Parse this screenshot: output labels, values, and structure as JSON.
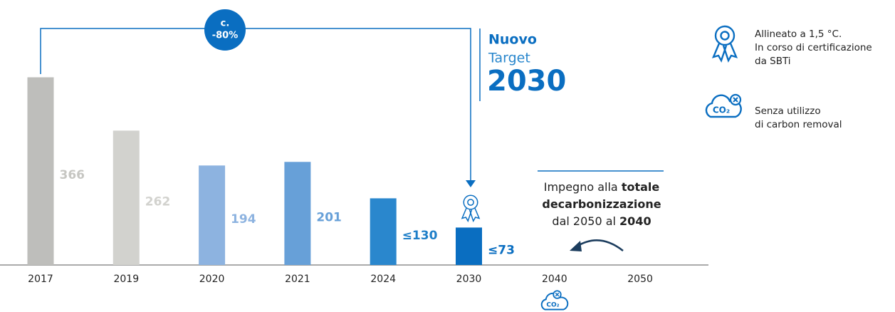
{
  "chart_data": {
    "type": "bar",
    "categories": [
      "2017",
      "2019",
      "2020",
      "2021",
      "2024",
      "2030",
      "2040",
      "2050"
    ],
    "values": [
      366,
      262,
      194,
      201,
      130,
      73,
      null,
      null
    ],
    "value_labels": [
      "366",
      "262",
      "194",
      "201",
      "≤130",
      "≤73",
      null,
      null
    ],
    "colors": [
      "#bebebb",
      "#d2d2ce",
      "#8db3e0",
      "#67a0d8",
      "#2a87cd",
      "#0a6ec1",
      null,
      null
    ],
    "label_colors": [
      "#c6c6c2",
      "#d2d2ce",
      "#8db3e0",
      "#67a0d8",
      "#1f7fc8",
      "#0a6ec1",
      null,
      null
    ],
    "ylim": [
      0,
      400
    ],
    "reduction": {
      "line1": "c.",
      "line2": "-80%"
    },
    "target": {
      "line1": "Nuovo",
      "line2": "Target",
      "line3": "2030"
    },
    "commitment": {
      "part1": "Impegno alla ",
      "part2": "totale",
      "part3": "decarbonizzazione",
      "part4": "dal 2050 al ",
      "part5": "2040"
    },
    "legend": [
      {
        "lines": [
          "Allineato a 1,5 °C.",
          "In corso di certificazione",
          "da SBTi"
        ]
      },
      {
        "lines": [
          "Senza utilizzo",
          "di carbon removal"
        ]
      }
    ]
  }
}
